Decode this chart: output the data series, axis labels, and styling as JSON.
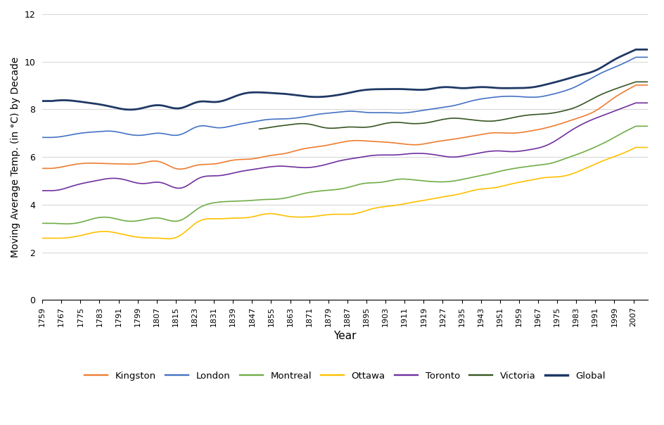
{
  "title": "",
  "ylabel": "Moving Average Temp. (in °C) by Decade",
  "xlabel": "Year",
  "ylim": [
    0,
    12
  ],
  "yticks": [
    0,
    2,
    4,
    6,
    8,
    10,
    12
  ],
  "year_start": 1759,
  "year_end": 2013,
  "x_tick_interval": 8,
  "series": {
    "Kingston": {
      "color": "#ED7D31",
      "linewidth": 1.2
    },
    "London": {
      "color": "#4472C4",
      "linewidth": 1.2
    },
    "Montreal": {
      "color": "#70AD47",
      "linewidth": 1.2
    },
    "Ottawa": {
      "color": "#FFC000",
      "linewidth": 1.2
    },
    "Toronto": {
      "color": "#7030A0",
      "linewidth": 1.2
    },
    "Victoria": {
      "color": "#375623",
      "linewidth": 1.2
    },
    "Global": {
      "color": "#1F3864",
      "linewidth": 2.0
    }
  },
  "background_color": "#FFFFFF",
  "grid_color": "#D9D9D9"
}
